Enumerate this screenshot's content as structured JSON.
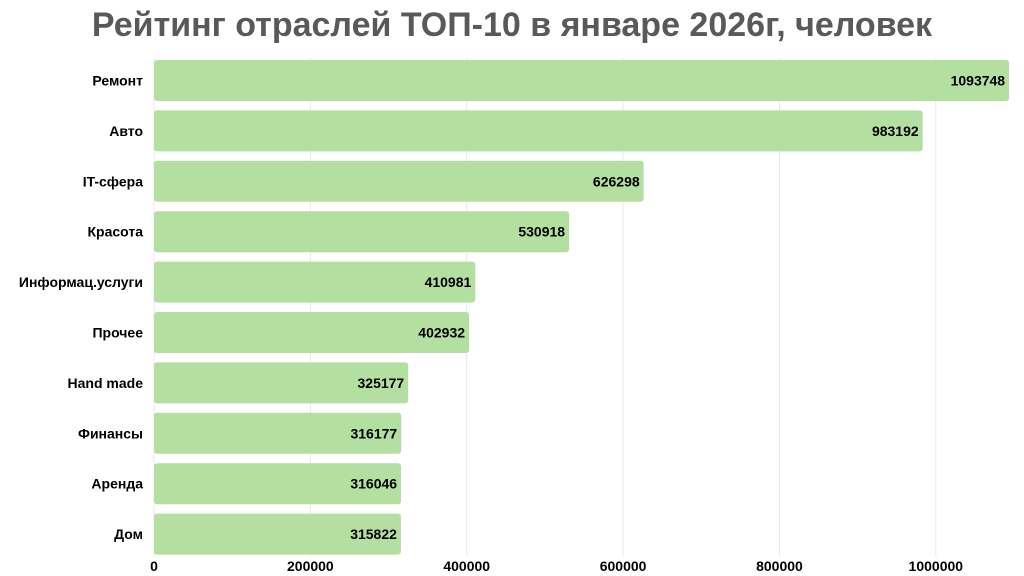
{
  "chart_data": {
    "type": "bar",
    "orientation": "horizontal",
    "title": "Рейтинг отраслей ТОП-10 в январе 2026г, человек",
    "categories": [
      "Ремонт",
      "Авто",
      "IT-сфера",
      "Красота",
      "Информац.услуги",
      "Прочее",
      "Hand made",
      "Финансы",
      "Аренда",
      "Дом"
    ],
    "values": [
      1093748,
      983192,
      626298,
      530918,
      410981,
      402932,
      325177,
      316177,
      316046,
      315822
    ],
    "x_ticks": [
      0,
      200000,
      400000,
      600000,
      800000,
      1000000
    ],
    "xlim": [
      0,
      1100000
    ],
    "xlabel": "",
    "ylabel": "",
    "grid": true,
    "legend": "none",
    "bar_color": "#b3dfa0",
    "grid_color": "#e8e8e8"
  }
}
